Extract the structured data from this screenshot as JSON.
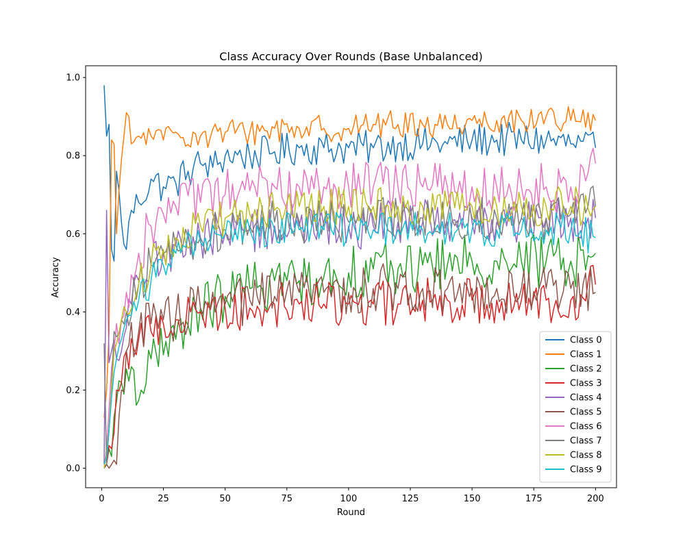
{
  "chart_data": {
    "type": "line",
    "title": "Class Accuracy Over Rounds (Base Unbalanced)",
    "xlabel": "Round",
    "ylabel": "Accuracy",
    "xlim": [
      -6.5,
      208.5
    ],
    "ylim": [
      -0.05,
      1.03
    ],
    "xticks": [
      0,
      25,
      50,
      75,
      100,
      125,
      150,
      175,
      200
    ],
    "yticks": [
      0.0,
      0.2,
      0.4,
      0.6,
      0.8,
      1.0
    ],
    "xtick_labels": [
      "0",
      "25",
      "50",
      "75",
      "100",
      "125",
      "150",
      "175",
      "200"
    ],
    "ytick_labels": [
      "0.0",
      "0.2",
      "0.4",
      "0.6",
      "0.8",
      "1.0"
    ],
    "grid": false,
    "legend_position": "lower-right",
    "rounds": [
      1,
      200
    ],
    "series": [
      {
        "name": "Class 0",
        "color": "#1f77b4",
        "amp": 0.045,
        "values": [
          [
            1,
            0.98
          ],
          [
            2,
            0.85
          ],
          [
            3,
            0.88
          ],
          [
            4,
            0.56
          ],
          [
            5,
            0.53
          ],
          [
            6,
            0.76
          ],
          [
            8,
            0.63
          ],
          [
            10,
            0.56
          ],
          [
            12,
            0.66
          ],
          [
            15,
            0.68
          ],
          [
            20,
            0.74
          ],
          [
            25,
            0.72
          ],
          [
            30,
            0.73
          ],
          [
            35,
            0.76
          ],
          [
            40,
            0.78
          ],
          [
            45,
            0.77
          ],
          [
            50,
            0.8
          ],
          [
            60,
            0.8
          ],
          [
            70,
            0.81
          ],
          [
            80,
            0.82
          ],
          [
            90,
            0.82
          ],
          [
            100,
            0.82
          ],
          [
            110,
            0.82
          ],
          [
            120,
            0.83
          ],
          [
            130,
            0.83
          ],
          [
            140,
            0.83
          ],
          [
            150,
            0.84
          ],
          [
            160,
            0.84
          ],
          [
            170,
            0.84
          ],
          [
            180,
            0.84
          ],
          [
            190,
            0.83
          ],
          [
            200,
            0.82
          ]
        ]
      },
      {
        "name": "Class 1",
        "color": "#ff7f0e",
        "amp": 0.035,
        "values": [
          [
            1,
            0.13
          ],
          [
            2,
            0.2
          ],
          [
            3,
            0.35
          ],
          [
            4,
            0.84
          ],
          [
            5,
            0.83
          ],
          [
            6,
            0.6
          ],
          [
            8,
            0.79
          ],
          [
            10,
            0.91
          ],
          [
            12,
            0.83
          ],
          [
            15,
            0.85
          ],
          [
            20,
            0.85
          ],
          [
            25,
            0.84
          ],
          [
            30,
            0.86
          ],
          [
            40,
            0.85
          ],
          [
            50,
            0.86
          ],
          [
            60,
            0.86
          ],
          [
            70,
            0.87
          ],
          [
            80,
            0.87
          ],
          [
            90,
            0.87
          ],
          [
            100,
            0.87
          ],
          [
            110,
            0.88
          ],
          [
            120,
            0.88
          ],
          [
            130,
            0.88
          ],
          [
            140,
            0.88
          ],
          [
            150,
            0.89
          ],
          [
            160,
            0.89
          ],
          [
            170,
            0.89
          ],
          [
            180,
            0.9
          ],
          [
            190,
            0.89
          ],
          [
            200,
            0.89
          ]
        ]
      },
      {
        "name": "Class 2",
        "color": "#2ca02c",
        "amp": 0.07,
        "values": [
          [
            1,
            0.0
          ],
          [
            2,
            0.01
          ],
          [
            3,
            0.05
          ],
          [
            4,
            0.03
          ],
          [
            6,
            0.17
          ],
          [
            8,
            0.22
          ],
          [
            12,
            0.26
          ],
          [
            16,
            0.2
          ],
          [
            20,
            0.28
          ],
          [
            25,
            0.29
          ],
          [
            30,
            0.33
          ],
          [
            40,
            0.41
          ],
          [
            50,
            0.44
          ],
          [
            60,
            0.46
          ],
          [
            70,
            0.48
          ],
          [
            80,
            0.48
          ],
          [
            90,
            0.49
          ],
          [
            100,
            0.5
          ],
          [
            110,
            0.51
          ],
          [
            120,
            0.51
          ],
          [
            130,
            0.52
          ],
          [
            140,
            0.52
          ],
          [
            150,
            0.53
          ],
          [
            160,
            0.53
          ],
          [
            170,
            0.53
          ],
          [
            180,
            0.53
          ],
          [
            190,
            0.53
          ],
          [
            200,
            0.55
          ]
        ]
      },
      {
        "name": "Class 3",
        "color": "#d62728",
        "amp": 0.06,
        "values": [
          [
            1,
            0.0
          ],
          [
            2,
            0.01
          ],
          [
            4,
            0.05
          ],
          [
            6,
            0.2
          ],
          [
            8,
            0.22
          ],
          [
            10,
            0.3
          ],
          [
            15,
            0.33
          ],
          [
            20,
            0.35
          ],
          [
            25,
            0.37
          ],
          [
            30,
            0.38
          ],
          [
            40,
            0.4
          ],
          [
            50,
            0.41
          ],
          [
            60,
            0.41
          ],
          [
            70,
            0.42
          ],
          [
            80,
            0.42
          ],
          [
            90,
            0.42
          ],
          [
            100,
            0.42
          ],
          [
            110,
            0.42
          ],
          [
            120,
            0.42
          ],
          [
            130,
            0.43
          ],
          [
            140,
            0.43
          ],
          [
            150,
            0.43
          ],
          [
            160,
            0.43
          ],
          [
            170,
            0.43
          ],
          [
            180,
            0.43
          ],
          [
            190,
            0.43
          ],
          [
            200,
            0.47
          ]
        ]
      },
      {
        "name": "Class 4",
        "color": "#9467bd",
        "amp": 0.06,
        "values": [
          [
            1,
            0.01
          ],
          [
            2,
            0.66
          ],
          [
            3,
            0.27
          ],
          [
            4,
            0.3
          ],
          [
            6,
            0.28
          ],
          [
            8,
            0.3
          ],
          [
            10,
            0.36
          ],
          [
            12,
            0.42
          ],
          [
            15,
            0.48
          ],
          [
            20,
            0.52
          ],
          [
            25,
            0.55
          ],
          [
            30,
            0.57
          ],
          [
            40,
            0.59
          ],
          [
            50,
            0.6
          ],
          [
            60,
            0.61
          ],
          [
            70,
            0.62
          ],
          [
            80,
            0.62
          ],
          [
            90,
            0.62
          ],
          [
            100,
            0.62
          ],
          [
            110,
            0.62
          ],
          [
            120,
            0.63
          ],
          [
            130,
            0.63
          ],
          [
            140,
            0.63
          ],
          [
            150,
            0.63
          ],
          [
            160,
            0.63
          ],
          [
            170,
            0.64
          ],
          [
            180,
            0.64
          ],
          [
            190,
            0.64
          ],
          [
            200,
            0.64
          ]
        ]
      },
      {
        "name": "Class 5",
        "color": "#8c564b",
        "amp": 0.065,
        "values": [
          [
            1,
            0.0
          ],
          [
            2,
            0.01
          ],
          [
            4,
            0.01
          ],
          [
            6,
            0.01
          ],
          [
            8,
            0.2
          ],
          [
            10,
            0.3
          ],
          [
            15,
            0.35
          ],
          [
            20,
            0.37
          ],
          [
            25,
            0.38
          ],
          [
            30,
            0.39
          ],
          [
            40,
            0.41
          ],
          [
            50,
            0.42
          ],
          [
            60,
            0.43
          ],
          [
            70,
            0.44
          ],
          [
            80,
            0.45
          ],
          [
            90,
            0.45
          ],
          [
            100,
            0.45
          ],
          [
            110,
            0.46
          ],
          [
            120,
            0.46
          ],
          [
            130,
            0.46
          ],
          [
            140,
            0.46
          ],
          [
            150,
            0.46
          ],
          [
            160,
            0.46
          ],
          [
            170,
            0.46
          ],
          [
            180,
            0.46
          ],
          [
            190,
            0.46
          ],
          [
            200,
            0.45
          ]
        ]
      },
      {
        "name": "Class 6",
        "color": "#e377c2",
        "amp": 0.065,
        "values": [
          [
            1,
            0.0
          ],
          [
            3,
            0.15
          ],
          [
            5,
            0.3
          ],
          [
            8,
            0.38
          ],
          [
            10,
            0.45
          ],
          [
            15,
            0.55
          ],
          [
            20,
            0.62
          ],
          [
            25,
            0.65
          ],
          [
            30,
            0.67
          ],
          [
            40,
            0.68
          ],
          [
            50,
            0.7
          ],
          [
            60,
            0.71
          ],
          [
            70,
            0.72
          ],
          [
            80,
            0.72
          ],
          [
            90,
            0.72
          ],
          [
            100,
            0.72
          ],
          [
            110,
            0.72
          ],
          [
            120,
            0.72
          ],
          [
            130,
            0.72
          ],
          [
            140,
            0.72
          ],
          [
            150,
            0.72
          ],
          [
            160,
            0.72
          ],
          [
            170,
            0.72
          ],
          [
            180,
            0.72
          ],
          [
            190,
            0.72
          ],
          [
            200,
            0.78
          ]
        ]
      },
      {
        "name": "Class 7",
        "color": "#7f7f7f",
        "amp": 0.055,
        "values": [
          [
            1,
            0.32
          ],
          [
            2,
            0.01
          ],
          [
            3,
            0.1
          ],
          [
            5,
            0.35
          ],
          [
            8,
            0.38
          ],
          [
            10,
            0.4
          ],
          [
            15,
            0.47
          ],
          [
            20,
            0.52
          ],
          [
            25,
            0.55
          ],
          [
            30,
            0.57
          ],
          [
            40,
            0.59
          ],
          [
            50,
            0.61
          ],
          [
            60,
            0.62
          ],
          [
            70,
            0.63
          ],
          [
            80,
            0.63
          ],
          [
            90,
            0.63
          ],
          [
            100,
            0.63
          ],
          [
            110,
            0.64
          ],
          [
            120,
            0.64
          ],
          [
            130,
            0.64
          ],
          [
            140,
            0.64
          ],
          [
            150,
            0.64
          ],
          [
            160,
            0.64
          ],
          [
            170,
            0.64
          ],
          [
            180,
            0.64
          ],
          [
            190,
            0.65
          ],
          [
            200,
            0.67
          ]
        ]
      },
      {
        "name": "Class 8",
        "color": "#bcbd22",
        "amp": 0.05,
        "values": [
          [
            1,
            0.0
          ],
          [
            3,
            0.1
          ],
          [
            5,
            0.3
          ],
          [
            8,
            0.38
          ],
          [
            10,
            0.4
          ],
          [
            15,
            0.47
          ],
          [
            20,
            0.52
          ],
          [
            25,
            0.56
          ],
          [
            30,
            0.59
          ],
          [
            40,
            0.62
          ],
          [
            50,
            0.64
          ],
          [
            60,
            0.65
          ],
          [
            70,
            0.66
          ],
          [
            80,
            0.67
          ],
          [
            90,
            0.67
          ],
          [
            100,
            0.67
          ],
          [
            110,
            0.67
          ],
          [
            120,
            0.67
          ],
          [
            130,
            0.67
          ],
          [
            140,
            0.67
          ],
          [
            150,
            0.67
          ],
          [
            160,
            0.67
          ],
          [
            170,
            0.67
          ],
          [
            180,
            0.67
          ],
          [
            190,
            0.67
          ],
          [
            200,
            0.67
          ]
        ]
      },
      {
        "name": "Class 9",
        "color": "#17becf",
        "amp": 0.045,
        "values": [
          [
            1,
            0.01
          ],
          [
            2,
            0.03
          ],
          [
            4,
            0.18
          ],
          [
            6,
            0.28
          ],
          [
            8,
            0.33
          ],
          [
            10,
            0.38
          ],
          [
            15,
            0.43
          ],
          [
            20,
            0.48
          ],
          [
            25,
            0.52
          ],
          [
            30,
            0.55
          ],
          [
            40,
            0.58
          ],
          [
            50,
            0.6
          ],
          [
            60,
            0.61
          ],
          [
            70,
            0.61
          ],
          [
            80,
            0.61
          ],
          [
            90,
            0.61
          ],
          [
            100,
            0.61
          ],
          [
            110,
            0.61
          ],
          [
            120,
            0.61
          ],
          [
            130,
            0.61
          ],
          [
            140,
            0.61
          ],
          [
            150,
            0.61
          ],
          [
            160,
            0.61
          ],
          [
            170,
            0.61
          ],
          [
            180,
            0.61
          ],
          [
            190,
            0.61
          ],
          [
            200,
            0.59
          ]
        ]
      }
    ]
  }
}
